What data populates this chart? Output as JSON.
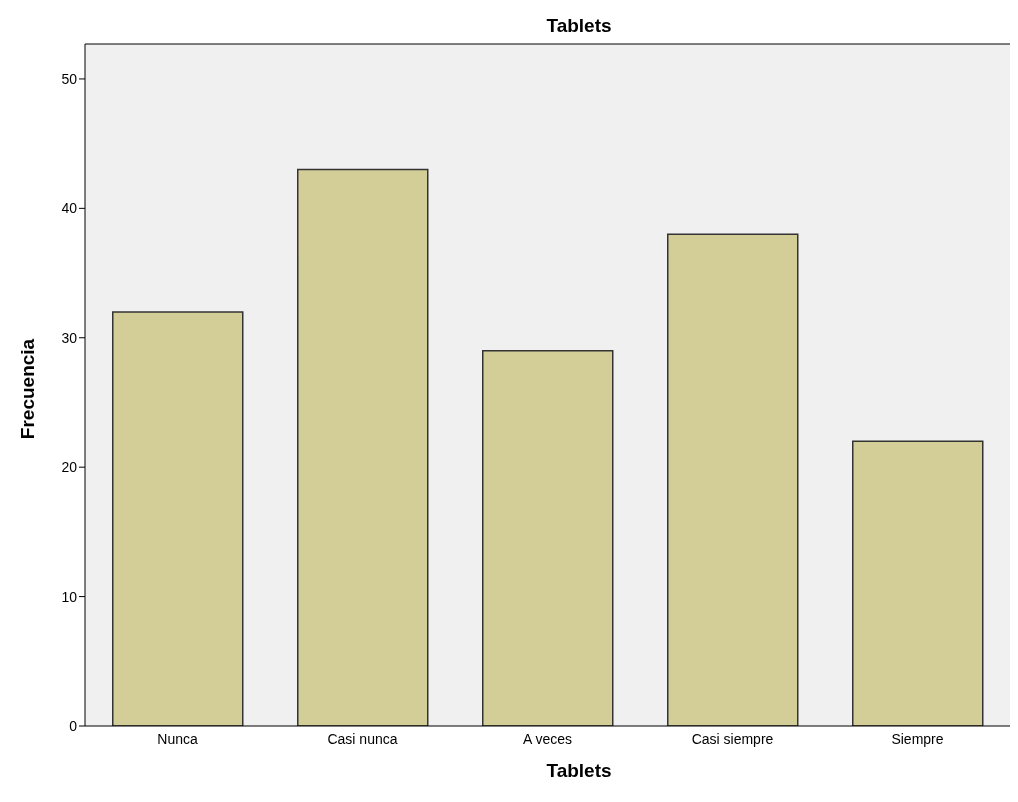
{
  "chart_data": {
    "type": "bar",
    "title": "Tablets",
    "xlabel": "Tablets",
    "ylabel": "Frecuencia",
    "categories": [
      "Nunca",
      "Casi nunca",
      "A veces",
      "Casi siempre",
      "Siempre"
    ],
    "values": [
      32,
      43,
      29,
      38,
      22
    ],
    "color": "#d3ce97",
    "ylim": [
      0,
      52.7
    ],
    "yticks": [
      0,
      10,
      20,
      30,
      40,
      50
    ],
    "grid": false
  }
}
